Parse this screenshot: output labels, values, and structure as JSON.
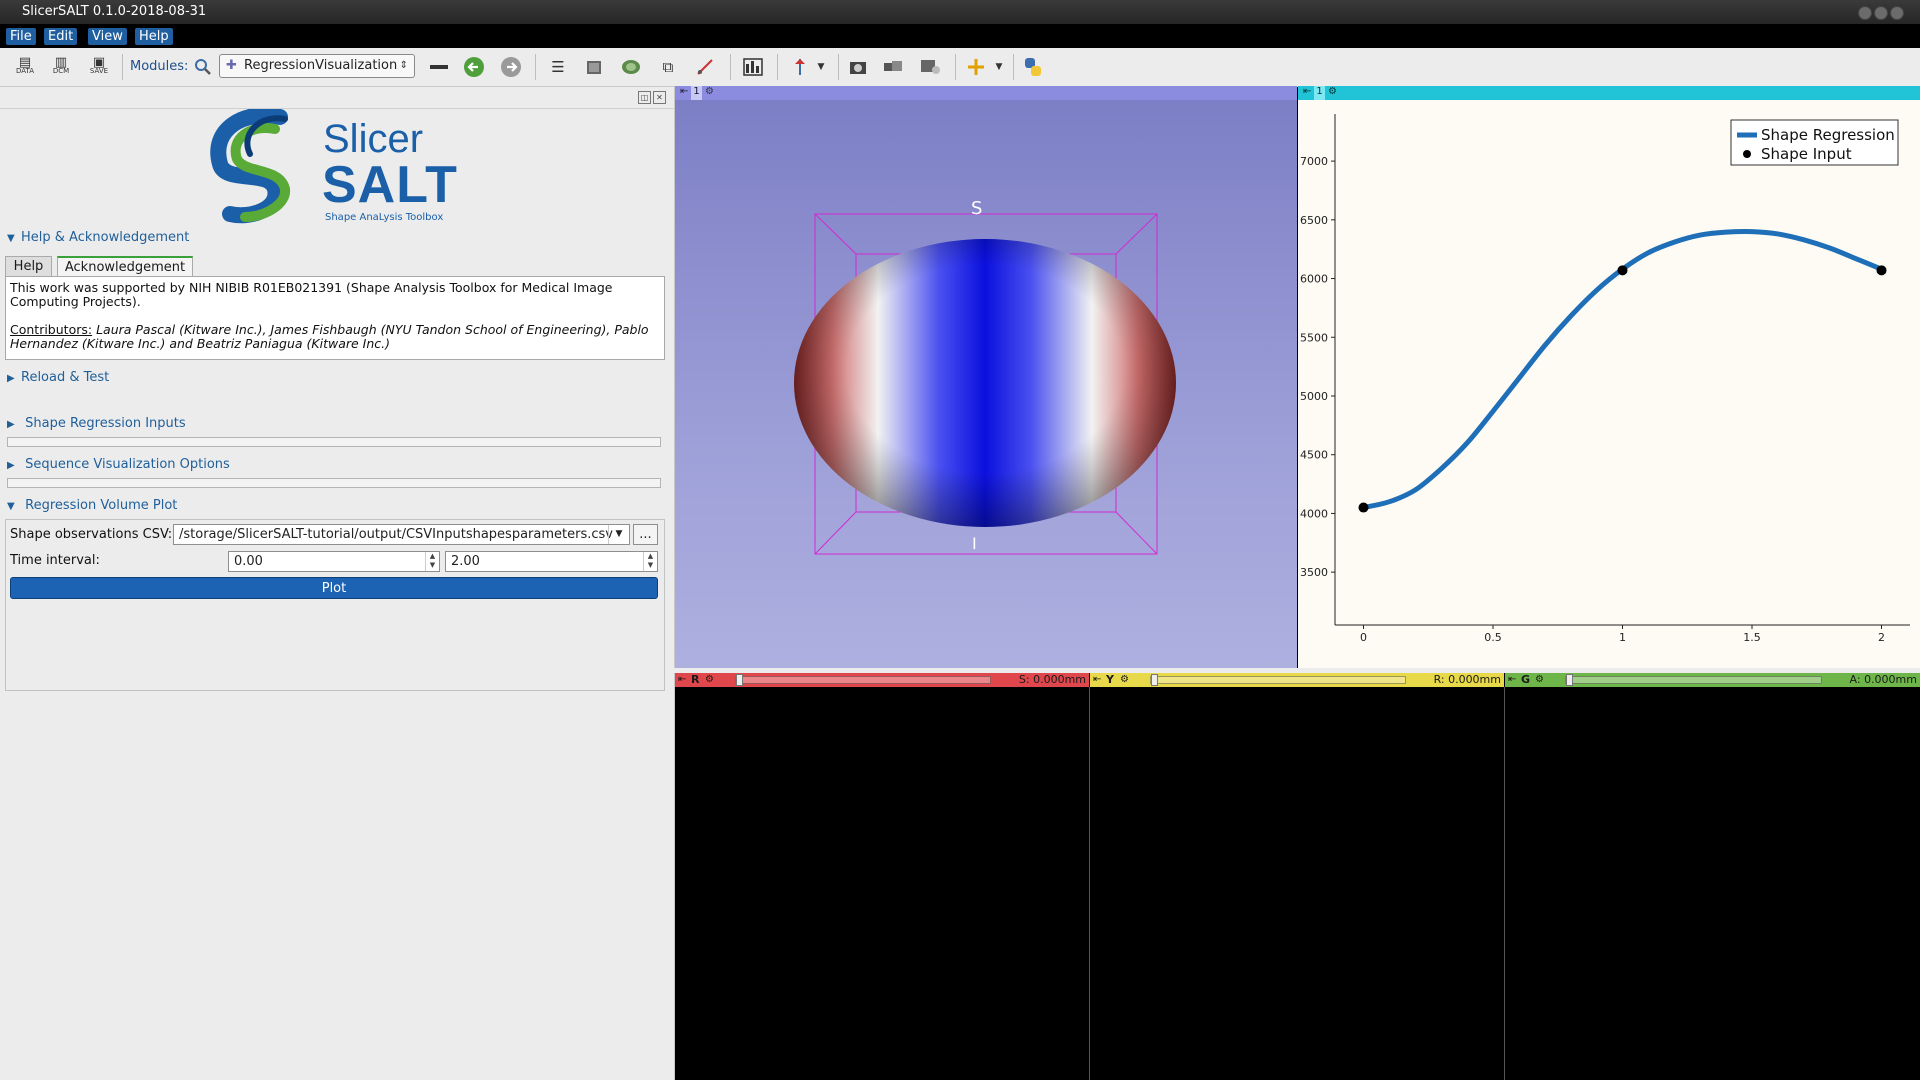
{
  "window": {
    "title": "SlicerSALT 0.1.0-2018-08-31"
  },
  "menubar": {
    "items": [
      "File",
      "Edit",
      "View",
      "Help"
    ]
  },
  "toolbar": {
    "modules_label": "Modules:",
    "module_selected": "RegressionVisualization",
    "load_data_label": "DATA",
    "dcm_label": "DCM",
    "save_label": "SAVE"
  },
  "logo": {
    "line1": "Slicer",
    "line2": "SALT",
    "tagline": "Shape AnaLysis Toolbox"
  },
  "sections": {
    "help_ack": "Help & Acknowledgement",
    "reload_test": "Reload & Test",
    "shape_regression_inputs": "Shape Regression Inputs",
    "sequence_visualization": "Sequence Visualization Options",
    "regression_volume_plot": "Regression Volume Plot"
  },
  "tabs": {
    "help": "Help",
    "acknowledgement": "Acknowledgement"
  },
  "acknowledgement": {
    "text": "This work was supported by NIH NIBIB R01EB021391 (Shape Analysis Toolbox for Medical Image Computing Projects).",
    "contributors_label": "Contributors:",
    "contributors": "Laura Pascal (Kitware Inc.), James Fishbaugh (NYU Tandon School of Engineering), Pablo Hernandez (Kitware Inc.) and Beatriz Paniagua (Kitware Inc.)"
  },
  "form": {
    "csv_label": "Shape observations CSV:",
    "csv_value": "/storage/SlicerSALT-tutorial/output/CSVInputshapesparameters.csv",
    "browse_label": "...",
    "time_label": "Time interval:",
    "time_start": "0.00",
    "time_end": "2.00",
    "plot_button": "Plot"
  },
  "view3d": {
    "layout_number": "1",
    "orientation_top": "S",
    "orientation_bottom": "I"
  },
  "chart_view": {
    "layout_number": "1"
  },
  "slices": [
    {
      "name": "R",
      "color": "#e0474c",
      "readout": "S: 0.000mm"
    },
    {
      "name": "Y",
      "color": "#e8d94a",
      "readout": "R: 0.000mm"
    },
    {
      "name": "G",
      "color": "#6fb64a",
      "readout": "A: 0.000mm"
    }
  ],
  "chart_data": {
    "type": "line",
    "series": [
      {
        "name": "Shape Regression",
        "style": "line",
        "color": "#1f6fb8",
        "x": [
          0,
          0.1,
          0.2,
          0.3,
          0.4,
          0.5,
          0.6,
          0.7,
          0.8,
          0.9,
          1.0,
          1.1,
          1.2,
          1.3,
          1.4,
          1.5,
          1.6,
          1.7,
          1.8,
          1.9,
          2.0
        ],
        "y": [
          4050,
          4100,
          4200,
          4380,
          4600,
          4870,
          5150,
          5430,
          5680,
          5900,
          6080,
          6220,
          6310,
          6370,
          6395,
          6400,
          6380,
          6330,
          6260,
          6170,
          6080
        ]
      },
      {
        "name": "Shape Input",
        "style": "points",
        "color": "#000000",
        "x": [
          0,
          1,
          2
        ],
        "y": [
          4050,
          6070,
          6070
        ]
      }
    ],
    "x_ticks": [
      "0",
      "0.5",
      "1",
      "1.5",
      "2"
    ],
    "y_ticks": [
      "3500",
      "4000",
      "4500",
      "5000",
      "5500",
      "6000",
      "6500",
      "7000"
    ],
    "xlim": [
      -0.11,
      2.11
    ],
    "ylim": [
      3050,
      7350
    ],
    "legend": "top-right",
    "grid": false
  }
}
